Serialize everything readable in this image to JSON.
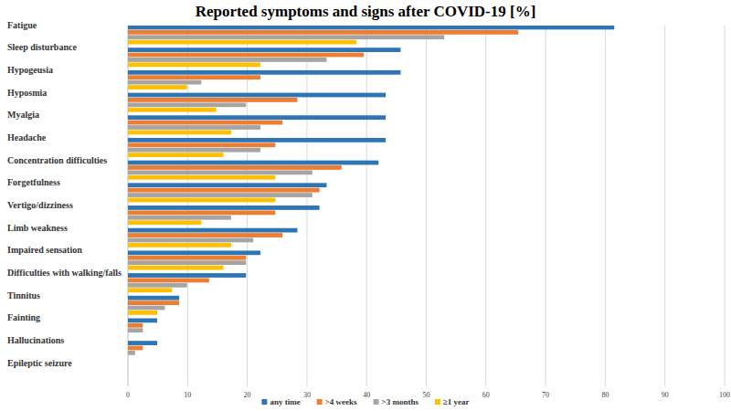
{
  "chart_data": {
    "type": "bar",
    "orientation": "horizontal",
    "title": "Reported symptoms and signs after COVID-19 [%]",
    "categories": [
      "Fatigue",
      "Sleep disturbance",
      "Hypogeusia",
      "Hyposmia",
      "Myalgia",
      "Headache",
      "Concentration difficulties",
      "Forgetfulness",
      "Vertigo/dizziness",
      "Limb weakness",
      "Impaired sensation",
      "Difficulties with walking/falls",
      "Tinnitus",
      "Fainting",
      "Hallucinations",
      "Epileptic seizure"
    ],
    "series": [
      {
        "name": "any time",
        "color": "#2e75b6",
        "values": [
          81.5,
          45.7,
          45.7,
          43.2,
          43.2,
          43.2,
          42.0,
          33.3,
          32.1,
          28.4,
          22.2,
          19.8,
          8.6,
          4.9,
          4.9,
          0
        ]
      },
      {
        "name": ">4 weeks",
        "color": "#ed7d31",
        "values": [
          65.4,
          39.5,
          22.2,
          28.4,
          25.9,
          24.7,
          35.8,
          32.1,
          24.7,
          25.9,
          19.8,
          13.6,
          8.6,
          2.5,
          2.5,
          0
        ]
      },
      {
        "name": ">3 months",
        "color": "#a5a5a5",
        "values": [
          53.0,
          33.3,
          12.3,
          19.8,
          22.2,
          22.2,
          30.9,
          30.9,
          17.3,
          21.0,
          19.8,
          9.9,
          6.2,
          2.5,
          1.2,
          0
        ]
      },
      {
        "name": "≥1 year",
        "color": "#ffc000",
        "values": [
          38.3,
          22.2,
          9.9,
          14.8,
          17.3,
          16.0,
          24.7,
          24.7,
          12.3,
          17.3,
          16.0,
          7.4,
          4.9,
          0,
          0,
          0
        ]
      }
    ],
    "xlim": [
      0,
      100
    ],
    "xticks": [
      0,
      10,
      20,
      30,
      40,
      50,
      60,
      70,
      80,
      90,
      100
    ],
    "grid": true,
    "legend": "bottom"
  }
}
